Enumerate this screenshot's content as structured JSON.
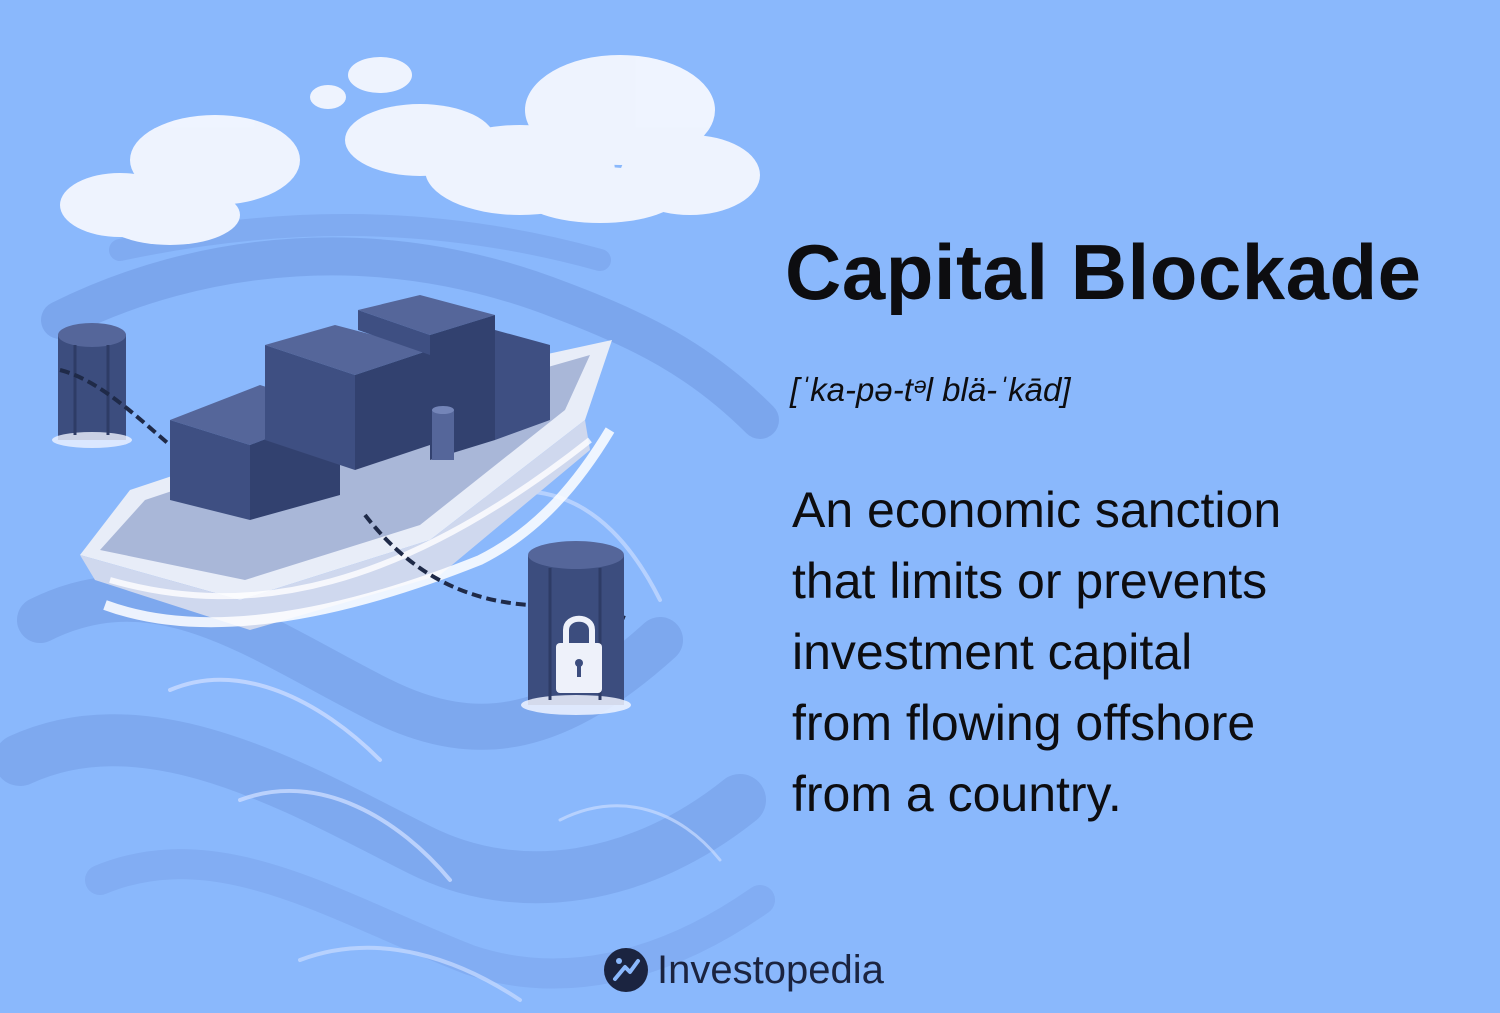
{
  "term": {
    "title": "Capital Blockade",
    "pronunciation": "[ˈka-pə-tᵊl blä-ˈkād]",
    "definition_lines": [
      "An economic sanction",
      "that limits or prevents",
      "investment capital",
      "from flowing offshore",
      "from a country."
    ]
  },
  "brand": {
    "name": "Investopedia",
    "logo_icon": "investopedia-logo-icon"
  },
  "colors": {
    "background": "#8ab8fc",
    "text": "#0d0d10",
    "boat": "#eef1fa",
    "cargo": "#3e4f82",
    "water": "#6f97e0",
    "cloud": "#f4f7ff"
  },
  "illustration": {
    "subject": "cargo-boat-chained-to-posts-with-padlock"
  }
}
